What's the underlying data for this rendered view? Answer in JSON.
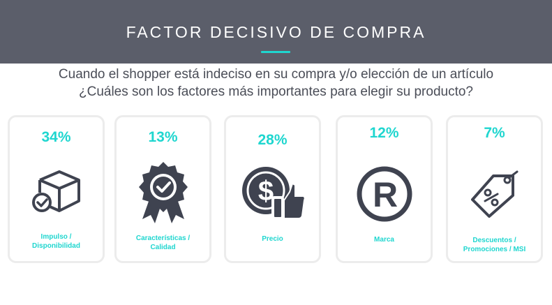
{
  "header": {
    "title": "FACTOR DECISIVO DE COMPRA"
  },
  "question": {
    "line1": "Cuando el shopper está indeciso en su compra y/o elección de un artículo",
    "line2": "¿Cuáles son los factores más importantes para elegir su producto?"
  },
  "colors": {
    "header_bg": "#5b5e6a",
    "accent": "#1fd6cf",
    "icon": "#3f4350"
  },
  "factors": [
    {
      "percent": "34%",
      "label_line1": "Impulso /",
      "label_line2": "Disponibilidad",
      "icon": "box-check-icon"
    },
    {
      "percent": "13%",
      "label_line1": "Características /",
      "label_line2": "Calidad",
      "icon": "quality-badge-icon"
    },
    {
      "percent": "28%",
      "label_line1": "Precio",
      "label_line2": "",
      "icon": "dollar-thumbs-up-icon"
    },
    {
      "percent": "12%",
      "label_line1": "Marca",
      "label_line2": "",
      "icon": "registered-trademark-icon"
    },
    {
      "percent": "7%",
      "label_line1": "Descuentos /",
      "label_line2": "Promociones / MSI",
      "icon": "discount-tag-icon"
    }
  ]
}
